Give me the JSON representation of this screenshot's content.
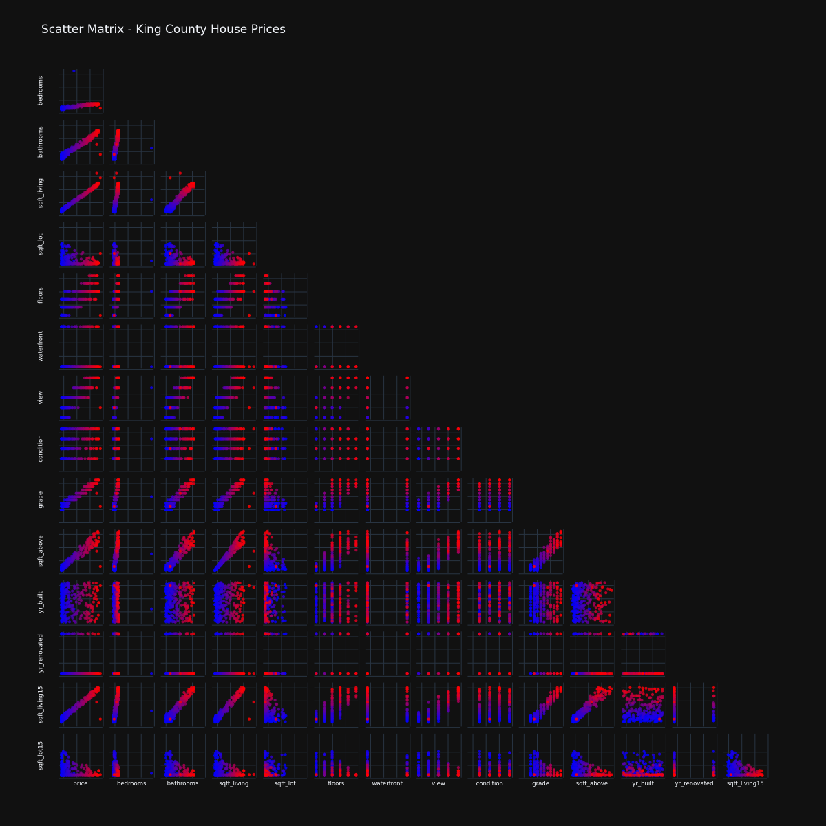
{
  "chart_data": {
    "type": "scatter",
    "title": "Scatter Matrix - King County House Prices",
    "layout_kind": "lower-triangle scatter matrix",
    "color_scale": {
      "low": "#0000ff",
      "high": "#ff0000",
      "variable": "price"
    },
    "x_dimensions": [
      "price",
      "bedrooms",
      "bathrooms",
      "sqft_living",
      "sqft_lot",
      "floors",
      "waterfront",
      "view",
      "condition",
      "grade",
      "sqft_above",
      "yr_built",
      "yr_renovated",
      "sqft_living15"
    ],
    "y_dimensions": [
      "bedrooms",
      "bathrooms",
      "sqft_living",
      "sqft_lot",
      "floors",
      "waterfront",
      "view",
      "condition",
      "grade",
      "sqft_above",
      "yr_built",
      "yr_renovated",
      "sqft_living15",
      "sqft_lot15"
    ],
    "variables": {
      "price": {
        "range": [
          75000,
          7700000
        ],
        "typical": [
          200000,
          1000000
        ]
      },
      "bedrooms": {
        "range": [
          0,
          33
        ],
        "typical": [
          2,
          5
        ]
      },
      "bathrooms": {
        "range": [
          0,
          8
        ],
        "typical": [
          1,
          3
        ]
      },
      "sqft_living": {
        "range": [
          290,
          13540
        ],
        "typical": [
          1000,
          3500
        ]
      },
      "sqft_lot": {
        "range": [
          520,
          1651359
        ],
        "typical": [
          3000,
          20000
        ]
      },
      "floors": {
        "levels": [
          1,
          1.5,
          2,
          2.5,
          3,
          3.5
        ]
      },
      "waterfront": {
        "levels": [
          0,
          1
        ]
      },
      "view": {
        "levels": [
          0,
          1,
          2,
          3,
          4
        ]
      },
      "condition": {
        "levels": [
          1,
          2,
          3,
          4,
          5
        ]
      },
      "grade": {
        "range": [
          1,
          13
        ],
        "typical": [
          6,
          9
        ]
      },
      "sqft_above": {
        "range": [
          290,
          9410
        ],
        "typical": [
          900,
          3000
        ]
      },
      "yr_built": {
        "range": [
          1900,
          2015
        ],
        "typical": [
          1900,
          2015
        ]
      },
      "yr_renovated": {
        "levels": [
          0,
          2015
        ]
      },
      "sqft_living15": {
        "range": [
          399,
          6210
        ],
        "typical": [
          1200,
          3000
        ]
      },
      "sqft_lot15": {
        "range": [
          651,
          871200
        ],
        "typical": [
          3000,
          20000
        ]
      }
    },
    "grid": true,
    "legend": "none"
  }
}
